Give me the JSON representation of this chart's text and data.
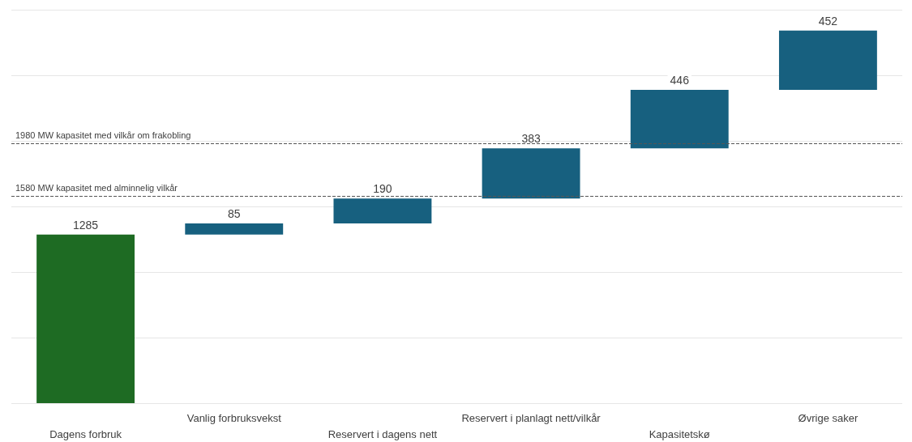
{
  "chart_data": {
    "type": "bar",
    "categories": [
      "Dagens forbruk",
      "Vanlig forbruksvekst",
      "Reservert i dagens nett",
      "Reservert i planlagt nett/vilkår",
      "Kapasitetskø",
      "Øvrige saker"
    ],
    "values": [
      1285,
      85,
      190,
      383,
      446,
      452
    ],
    "base": [
      0,
      1285,
      1370,
      1560,
      1943,
      2389
    ],
    "colors": [
      "#1e6b23",
      "#17607f",
      "#17607f",
      "#17607f",
      "#17607f",
      "#17607f"
    ],
    "data_labels": true,
    "ylim": [
      0,
      3000
    ],
    "yticks": [
      {
        "value": 0,
        "label": null
      },
      {
        "value": 500,
        "label": null
      },
      {
        "value": 1000,
        "label": null
      },
      {
        "value": 1500,
        "label": null
      },
      {
        "value": 2000,
        "label": null
      },
      {
        "value": 2500,
        "label": null
      },
      {
        "value": 3000,
        "label": null
      }
    ],
    "tick_labels": "x",
    "grid": "y",
    "ref_lines": [
      {
        "axis": "y",
        "value": 1980,
        "label": "1980 MW kapasitet med vilkår om frakobling",
        "color": "#555555",
        "line_style": "dashed"
      },
      {
        "axis": "y",
        "value": 1580,
        "label": "1580 MW kapasitet med alminnelig vilkår",
        "color": "#555555",
        "line_style": "dashed"
      }
    ]
  }
}
